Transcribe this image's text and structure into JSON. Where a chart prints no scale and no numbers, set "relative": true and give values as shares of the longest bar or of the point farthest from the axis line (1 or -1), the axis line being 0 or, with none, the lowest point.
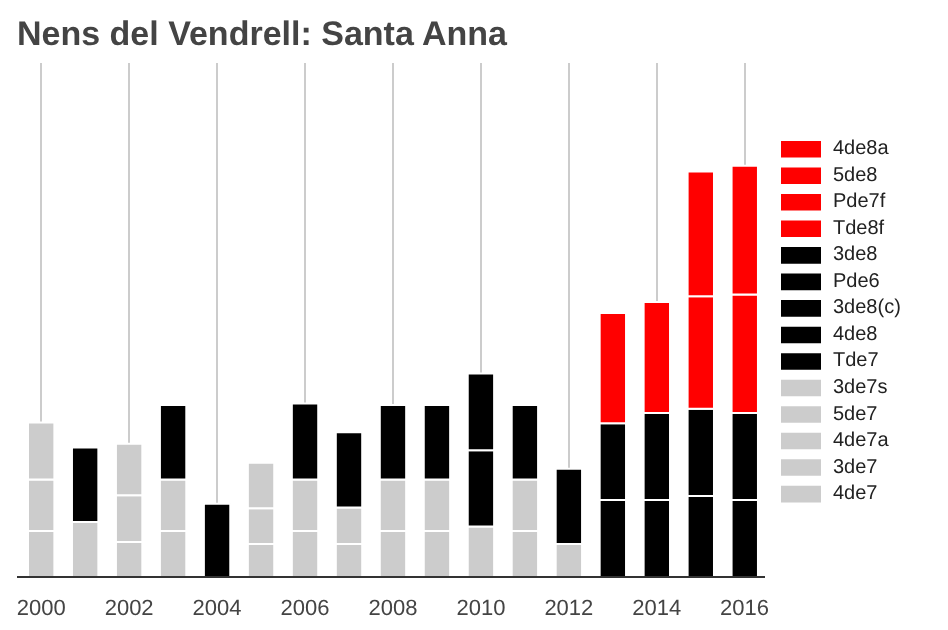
{
  "chart_data": {
    "type": "bar",
    "title": "Nens del Vendrell: Santa Anna",
    "stacked": true,
    "relative": true,
    "grid": "x",
    "legend": "right",
    "x": [
      2000,
      2001,
      2002,
      2003,
      2004,
      2005,
      2006,
      2007,
      2008,
      2009,
      2010,
      2011,
      2012,
      2013,
      2014,
      2015,
      2016
    ],
    "xlim": [
      1999.45,
      2016.46
    ],
    "xticks": [
      2000,
      2002,
      2004,
      2006,
      2008,
      2010,
      2012,
      2014,
      2016
    ],
    "series": [
      {
        "name": "4de7",
        "color": "#cccccc",
        "values": [
          0.112,
          null,
          0.085,
          0.112,
          null,
          0.08,
          0.112,
          0.08,
          0.112,
          0.112,
          null,
          0.112,
          0.08,
          null,
          null,
          null,
          null
        ]
      },
      {
        "name": "3de7",
        "color": "#cccccc",
        "values": [
          0.125,
          0.134,
          0.114,
          0.125,
          null,
          0.087,
          0.125,
          0.089,
          0.125,
          0.125,
          0.123,
          0.125,
          null,
          null,
          null,
          null,
          null
        ]
      },
      {
        "name": "4de7a",
        "color": "#cccccc",
        "values": [
          0.139,
          null,
          null,
          null,
          null,
          null,
          null,
          null,
          null,
          null,
          null,
          null,
          null,
          null,
          null,
          null,
          null
        ]
      },
      {
        "name": "5de7",
        "color": "#cccccc",
        "values": [
          null,
          null,
          0.125,
          null,
          null,
          null,
          null,
          null,
          null,
          null,
          null,
          null,
          null,
          null,
          null,
          null,
          null
        ]
      },
      {
        "name": "3de7s",
        "color": "#cccccc",
        "values": [
          null,
          null,
          null,
          null,
          null,
          0.111,
          null,
          null,
          null,
          null,
          null,
          null,
          null,
          null,
          null,
          null,
          null
        ]
      },
      {
        "name": "Tde7",
        "color": "#000000",
        "values": [
          null,
          0.181,
          null,
          0.181,
          0.178,
          null,
          0.185,
          0.183,
          0.181,
          0.181,
          0.185,
          0.181,
          0.183,
          null,
          null,
          null,
          null
        ]
      },
      {
        "name": "4de8",
        "color": "#000000",
        "values": [
          null,
          null,
          null,
          null,
          null,
          null,
          null,
          null,
          null,
          null,
          0.187,
          null,
          null,
          0.187,
          0.187,
          null,
          0.187
        ]
      },
      {
        "name": "3de8(c)",
        "color": "#000000",
        "values": [
          null,
          null,
          null,
          null,
          null,
          null,
          null,
          null,
          null,
          null,
          null,
          null,
          null,
          0.187,
          null,
          null,
          null
        ]
      },
      {
        "name": "Pde6",
        "color": "#000000",
        "values": [
          null,
          null,
          null,
          null,
          null,
          null,
          null,
          null,
          null,
          null,
          null,
          null,
          null,
          null,
          null,
          0.197,
          null
        ]
      },
      {
        "name": "3de8",
        "color": "#000000",
        "values": [
          null,
          null,
          null,
          null,
          null,
          null,
          null,
          null,
          null,
          null,
          null,
          null,
          null,
          null,
          0.212,
          0.212,
          0.212
        ]
      },
      {
        "name": "Tde8f",
        "color": "#ff0000",
        "values": [
          null,
          null,
          null,
          null,
          null,
          null,
          null,
          null,
          null,
          null,
          null,
          null,
          null,
          0.268,
          0.27,
          null,
          null
        ]
      },
      {
        "name": "Pde7f",
        "color": "#ff0000",
        "values": [
          null,
          null,
          null,
          null,
          null,
          null,
          null,
          null,
          null,
          null,
          null,
          null,
          null,
          null,
          null,
          0.274,
          null
        ]
      },
      {
        "name": "5de8",
        "color": "#ff0000",
        "values": [
          null,
          null,
          null,
          null,
          null,
          null,
          null,
          null,
          null,
          null,
          null,
          null,
          null,
          null,
          null,
          0.303,
          0.288
        ]
      },
      {
        "name": "4de8a",
        "color": "#ff0000",
        "values": [
          null,
          null,
          null,
          null,
          null,
          null,
          null,
          null,
          null,
          null,
          null,
          null,
          null,
          null,
          null,
          null,
          0.313
        ]
      }
    ]
  }
}
